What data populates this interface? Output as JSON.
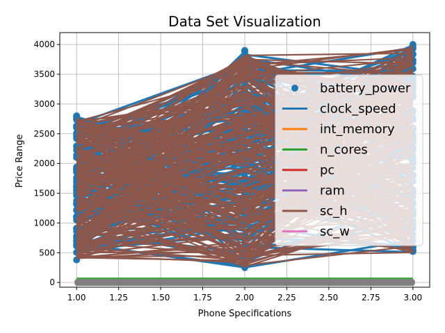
{
  "chart_data": {
    "type": "line",
    "title": "Data Set Visualization",
    "xlabel": "Phone Specifications",
    "ylabel": "Price Range",
    "xlim": [
      0.9,
      3.1
    ],
    "ylim": [
      -80,
      4200
    ],
    "x_ticks": [
      "1.00",
      "1.25",
      "1.50",
      "1.75",
      "2.00",
      "2.25",
      "2.50",
      "2.75",
      "3.00"
    ],
    "x_tick_values": [
      1.0,
      1.25,
      1.5,
      1.75,
      2.0,
      2.25,
      2.5,
      2.75,
      3.0
    ],
    "y_ticks": [
      "0",
      "500",
      "1000",
      "1500",
      "2000",
      "2500",
      "3000",
      "3500",
      "4000"
    ],
    "y_tick_values": [
      0,
      500,
      1000,
      1500,
      2000,
      2500,
      3000,
      3500,
      4000
    ],
    "grid": true,
    "legend_position": "right",
    "x": [
      1,
      2,
      3
    ],
    "series": [
      {
        "name": "battery_power",
        "kind": "scatter",
        "color": "#1f77b4",
        "points": [
          [
            1,
            380
          ],
          [
            1,
            700
          ],
          [
            1,
            1100
          ],
          [
            1,
            1600
          ],
          [
            1,
            2100
          ],
          [
            1,
            2500
          ],
          [
            1,
            2800
          ],
          [
            2,
            250
          ],
          [
            2,
            800
          ],
          [
            2,
            1500
          ],
          [
            2,
            2200
          ],
          [
            2,
            2900
          ],
          [
            2,
            3700
          ],
          [
            2,
            3900
          ],
          [
            3,
            520
          ],
          [
            3,
            1000
          ],
          [
            3,
            1800
          ],
          [
            3,
            2600
          ],
          [
            3,
            3300
          ],
          [
            3,
            4000
          ]
        ]
      },
      {
        "name": "clock_speed",
        "kind": "line",
        "color": "#1f77b4",
        "ranges": [
          [
            500,
            2800
          ],
          [
            250,
            3900
          ],
          [
            500,
            4000
          ]
        ]
      },
      {
        "name": "int_memory",
        "kind": "line",
        "color": "#ff7f0e",
        "values": [
          30,
          30,
          30
        ]
      },
      {
        "name": "n_cores",
        "kind": "line",
        "color": "#2ca02c",
        "values": [
          70,
          70,
          70
        ]
      },
      {
        "name": "pc",
        "kind": "line",
        "color": "#d62728",
        "values": [
          10,
          10,
          10
        ]
      },
      {
        "name": "ram",
        "kind": "line",
        "color": "#9467bd",
        "values": [
          5,
          5,
          5
        ]
      },
      {
        "name": "sc_h",
        "kind": "line",
        "color": "#8c564b",
        "ranges": [
          [
            380,
            2800
          ],
          [
            250,
            3900
          ],
          [
            500,
            4000
          ]
        ]
      },
      {
        "name": "sc_w",
        "kind": "line",
        "color": "#e377c2",
        "values": [
          8,
          8,
          8
        ]
      }
    ]
  }
}
